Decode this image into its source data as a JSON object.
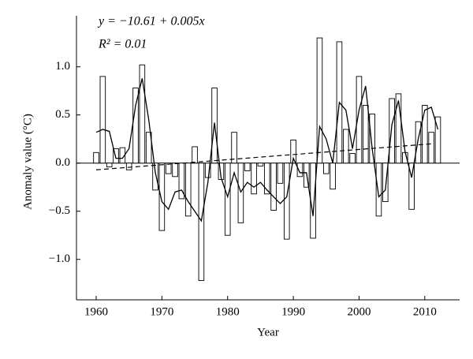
{
  "chart_data": {
    "type": "bar",
    "xlabel": "Year",
    "ylabel": "Anomaly value (°C)",
    "annotations": [
      "y = −10.61 + 0.005x",
      "R² = 0.01"
    ],
    "x": [
      1960,
      1961,
      1962,
      1963,
      1964,
      1965,
      1966,
      1967,
      1968,
      1969,
      1970,
      1971,
      1972,
      1973,
      1974,
      1975,
      1976,
      1977,
      1978,
      1979,
      1980,
      1981,
      1982,
      1983,
      1984,
      1985,
      1986,
      1987,
      1988,
      1989,
      1990,
      1991,
      1992,
      1993,
      1994,
      1995,
      1996,
      1997,
      1998,
      1999,
      2000,
      2001,
      2002,
      2003,
      2004,
      2005,
      2006,
      2007,
      2008,
      2009,
      2010,
      2011,
      2012
    ],
    "series": [
      {
        "color": "#ffffff",
        "values": [
          0.11,
          0.9,
          -0.04,
          0.15,
          0.16,
          -0.07,
          0.78,
          1.02,
          0.32,
          -0.28,
          -0.7,
          -0.11,
          -0.14,
          -0.37,
          -0.55,
          0.17,
          -1.22,
          -0.15,
          0.78,
          -0.17,
          -0.75,
          0.32,
          -0.62,
          -0.08,
          -0.32,
          -0.03,
          -0.32,
          -0.49,
          -0.21,
          -0.79,
          0.24,
          -0.14,
          -0.25,
          -0.78,
          1.3,
          -0.11,
          -0.27,
          1.26,
          0.35,
          0.1,
          0.9,
          0.6,
          0.51,
          -0.55,
          -0.4,
          0.67,
          0.72,
          0.11,
          -0.48,
          0.43,
          0.6,
          0.32,
          0.48
        ]
      },
      {
        "color": "#000000",
        "values": [
          0.32,
          0.35,
          0.33,
          0.05,
          0.05,
          0.15,
          0.6,
          0.88,
          0.45,
          -0.1,
          -0.4,
          -0.48,
          -0.3,
          -0.28,
          -0.4,
          -0.5,
          -0.6,
          -0.2,
          0.42,
          -0.15,
          -0.35,
          -0.1,
          -0.3,
          -0.2,
          -0.25,
          -0.2,
          -0.28,
          -0.35,
          -0.42,
          -0.35,
          0.05,
          -0.1,
          -0.1,
          -0.55,
          0.38,
          0.25,
          0.0,
          0.63,
          0.55,
          0.15,
          0.55,
          0.8,
          0.15,
          -0.35,
          -0.28,
          0.4,
          0.65,
          0.12,
          -0.15,
          0.25,
          0.55,
          0.58,
          0.35
        ]
      }
    ],
    "trend": {
      "x": [
        1960,
        2011
      ],
      "values": [
        -0.07,
        0.2
      ]
    },
    "xlim": [
      1957,
      2015.3
    ],
    "ylim": [
      -1.42,
      1.53
    ],
    "xticks": [
      1960,
      1970,
      1980,
      1990,
      2000,
      2010
    ],
    "yticks": [
      {
        "value": -1.0,
        "label": "−1.0"
      },
      {
        "value": -0.5,
        "label": "−0.5"
      },
      {
        "value": 0,
        "label": "0.0"
      },
      0.5,
      {
        "value": 1.0,
        "label": "1.0"
      }
    ]
  }
}
